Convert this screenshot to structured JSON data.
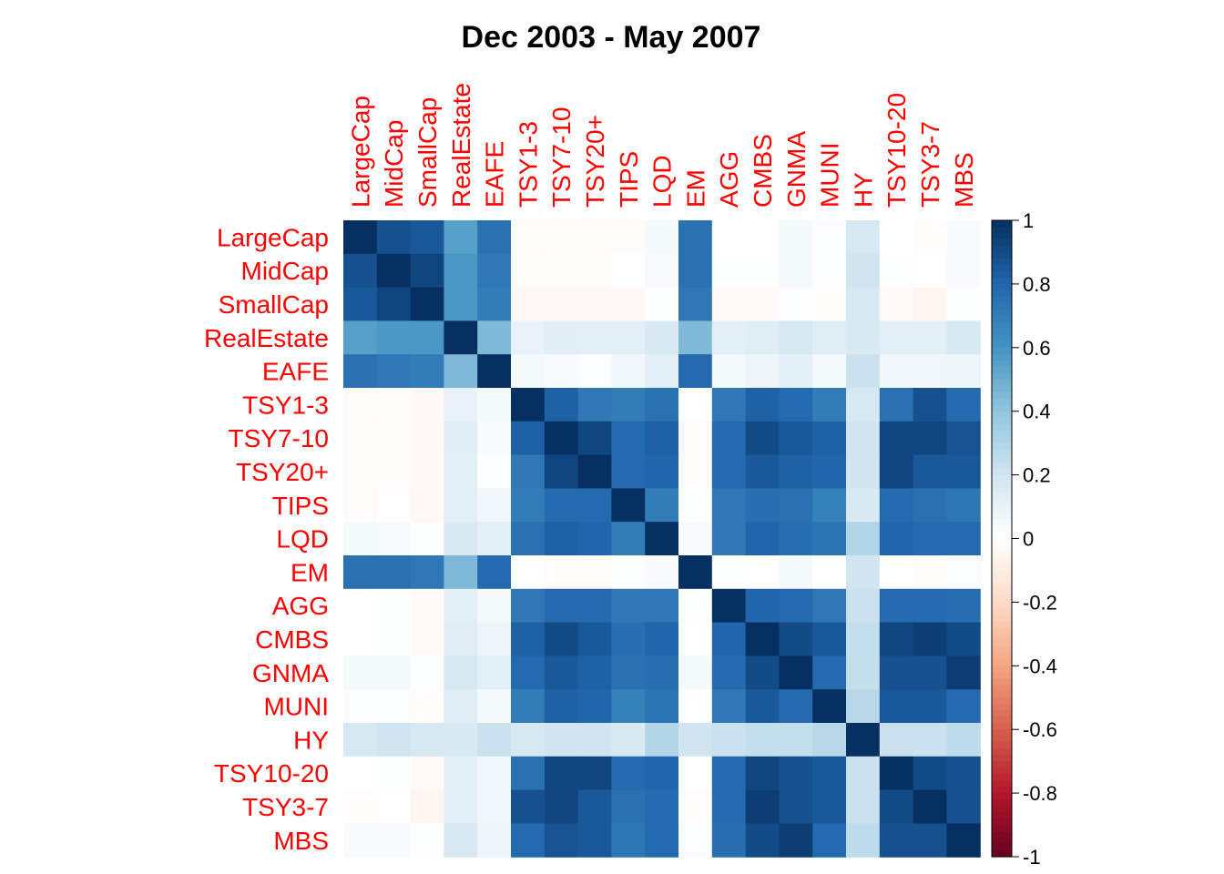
{
  "chart_data": {
    "type": "heatmap",
    "title": "Dec 2003 - May 2007",
    "labels": [
      "LargeCap",
      "MidCap",
      "SmallCap",
      "RealEstate",
      "EAFE",
      "TSY1-3",
      "TSY7-10",
      "TSY20+",
      "TIPS",
      "LQD",
      "EM",
      "AGG",
      "CMBS",
      "GNMA",
      "MUNI",
      "HY",
      "TSY10-20",
      "TSY3-7",
      "MBS"
    ],
    "matrix": [
      [
        1.0,
        0.88,
        0.85,
        0.55,
        0.75,
        -0.02,
        -0.02,
        -0.02,
        -0.02,
        0.05,
        0.75,
        0.0,
        0.0,
        0.05,
        0.02,
        0.18,
        0.0,
        -0.01,
        0.03
      ],
      [
        0.88,
        1.0,
        0.92,
        0.58,
        0.72,
        -0.02,
        -0.02,
        -0.02,
        0.0,
        0.04,
        0.75,
        0.01,
        0.01,
        0.05,
        0.02,
        0.2,
        0.01,
        0.0,
        0.03
      ],
      [
        0.85,
        0.92,
        1.0,
        0.58,
        0.7,
        -0.04,
        -0.04,
        -0.04,
        -0.04,
        0.01,
        0.72,
        -0.03,
        -0.03,
        0.02,
        -0.02,
        0.18,
        -0.03,
        -0.05,
        0.01
      ],
      [
        0.55,
        0.58,
        0.58,
        1.0,
        0.45,
        0.1,
        0.13,
        0.12,
        0.12,
        0.16,
        0.45,
        0.12,
        0.14,
        0.18,
        0.14,
        0.16,
        0.12,
        0.12,
        0.17
      ],
      [
        0.75,
        0.72,
        0.7,
        0.45,
        1.0,
        0.05,
        0.03,
        0.02,
        0.06,
        0.12,
        0.78,
        0.05,
        0.08,
        0.12,
        0.05,
        0.22,
        0.06,
        0.06,
        0.08
      ],
      [
        -0.02,
        -0.02,
        -0.04,
        0.1,
        0.05,
        1.0,
        0.82,
        0.72,
        0.7,
        0.75,
        0.0,
        0.72,
        0.82,
        0.78,
        0.7,
        0.18,
        0.75,
        0.88,
        0.78
      ],
      [
        -0.02,
        -0.02,
        -0.04,
        0.13,
        0.03,
        0.82,
        1.0,
        0.92,
        0.78,
        0.82,
        -0.02,
        0.78,
        0.9,
        0.85,
        0.82,
        0.2,
        0.92,
        0.92,
        0.87
      ],
      [
        -0.02,
        -0.02,
        -0.04,
        0.12,
        0.02,
        0.72,
        0.92,
        1.0,
        0.78,
        0.8,
        -0.02,
        0.78,
        0.85,
        0.82,
        0.8,
        0.2,
        0.92,
        0.85,
        0.85
      ],
      [
        -0.02,
        0.0,
        -0.04,
        0.12,
        0.06,
        0.7,
        0.78,
        0.78,
        1.0,
        0.7,
        0.01,
        0.72,
        0.76,
        0.75,
        0.68,
        0.16,
        0.78,
        0.75,
        0.73
      ],
      [
        0.05,
        0.04,
        0.01,
        0.16,
        0.12,
        0.75,
        0.82,
        0.8,
        0.7,
        1.0,
        0.03,
        0.72,
        0.8,
        0.76,
        0.74,
        0.3,
        0.8,
        0.78,
        0.78
      ],
      [
        0.75,
        0.75,
        0.72,
        0.45,
        0.78,
        0.0,
        -0.02,
        -0.02,
        0.01,
        0.03,
        1.0,
        0.01,
        0.0,
        0.05,
        0.0,
        0.2,
        0.0,
        -0.01,
        0.02
      ],
      [
        0.0,
        0.01,
        -0.03,
        0.12,
        0.05,
        0.72,
        0.78,
        0.78,
        0.72,
        0.72,
        0.01,
        1.0,
        0.8,
        0.78,
        0.72,
        0.22,
        0.78,
        0.78,
        0.76
      ],
      [
        0.0,
        0.01,
        -0.03,
        0.14,
        0.08,
        0.82,
        0.9,
        0.85,
        0.76,
        0.8,
        0.0,
        0.8,
        1.0,
        0.9,
        0.85,
        0.24,
        0.92,
        0.95,
        0.9
      ],
      [
        0.05,
        0.05,
        0.02,
        0.18,
        0.12,
        0.78,
        0.85,
        0.82,
        0.75,
        0.76,
        0.05,
        0.78,
        0.9,
        1.0,
        0.78,
        0.24,
        0.88,
        0.88,
        0.95
      ],
      [
        0.02,
        0.02,
        -0.02,
        0.14,
        0.05,
        0.7,
        0.82,
        0.8,
        0.68,
        0.74,
        0.0,
        0.72,
        0.85,
        0.78,
        1.0,
        0.28,
        0.85,
        0.85,
        0.78
      ],
      [
        0.18,
        0.2,
        0.18,
        0.16,
        0.22,
        0.18,
        0.2,
        0.2,
        0.16,
        0.3,
        0.2,
        0.22,
        0.24,
        0.24,
        0.28,
        1.0,
        0.22,
        0.22,
        0.26
      ],
      [
        0.0,
        0.01,
        -0.03,
        0.12,
        0.06,
        0.75,
        0.92,
        0.92,
        0.78,
        0.8,
        0.0,
        0.78,
        0.92,
        0.88,
        0.85,
        0.22,
        1.0,
        0.9,
        0.88
      ],
      [
        -0.01,
        0.0,
        -0.05,
        0.12,
        0.06,
        0.88,
        0.92,
        0.85,
        0.75,
        0.78,
        -0.01,
        0.78,
        0.95,
        0.88,
        0.85,
        0.22,
        0.9,
        1.0,
        0.88
      ],
      [
        0.03,
        0.03,
        0.01,
        0.17,
        0.08,
        0.78,
        0.87,
        0.85,
        0.73,
        0.78,
        0.02,
        0.76,
        0.9,
        0.95,
        0.78,
        0.26,
        0.88,
        0.88,
        1.0
      ]
    ],
    "colorbar": {
      "range": [
        -1,
        1
      ],
      "ticks": [
        "1",
        "0.8",
        "0.6",
        "0.4",
        "0.2",
        "0",
        "-0.2",
        "-0.4",
        "-0.6",
        "-0.8",
        "-1"
      ]
    },
    "colors": {
      "label": "#ff0000",
      "scale": [
        "#67001f",
        "#b2182b",
        "#d6604d",
        "#f4a582",
        "#fddbc7",
        "#ffffff",
        "#d1e5f0",
        "#92c5de",
        "#4393c3",
        "#2166ac",
        "#053061"
      ]
    }
  }
}
